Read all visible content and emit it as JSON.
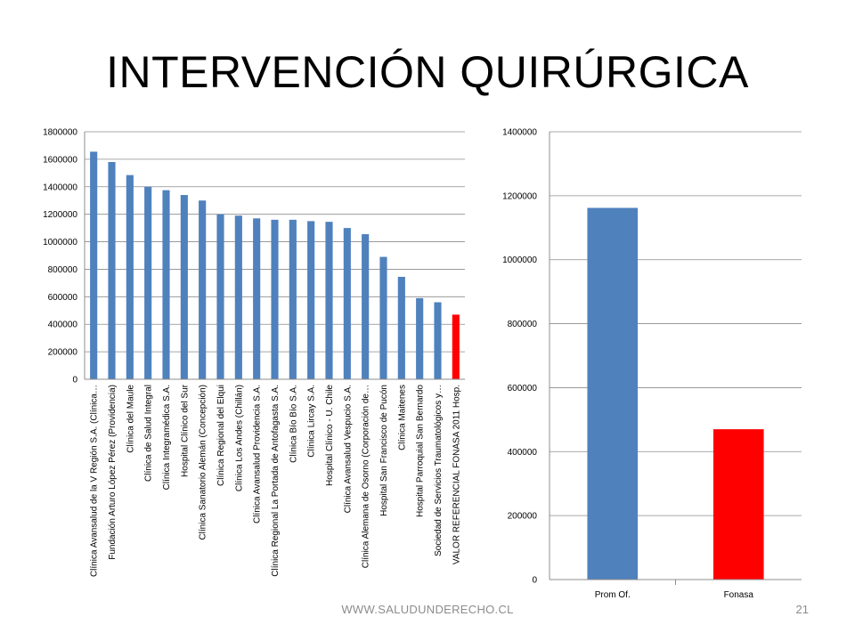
{
  "slide": {
    "title": "INTERVENCIÓN QUIRÚRGICA",
    "footer_url": "WWW.SALUDUNDERECHO.CL",
    "page_number": "21"
  },
  "colors": {
    "blue": "#4f81bd",
    "red": "#ff0000",
    "grid": "#8c8c8c",
    "axis": "#8c8c8c"
  },
  "chart_data": [
    {
      "type": "bar",
      "title": "",
      "xlabel": "",
      "ylabel": "",
      "ylim": [
        0,
        1800000
      ],
      "yticks": [
        0,
        200000,
        400000,
        600000,
        800000,
        1000000,
        1200000,
        1400000,
        1600000,
        1800000
      ],
      "grid": true,
      "legend": "none",
      "categories": [
        "Clínica Avansalud de la V Región S.A. (Clínica…",
        "Fundación Arturo López Pérez (Providencia)",
        "Clínica del Maule",
        "Clínica de Salud Integral",
        "Clínica Integramédica S.A.",
        "Hospital Clínico del Sur",
        "Clínica Sanatorio Alemán (Concepción)",
        "Clínica Regional del Elqui",
        "Clínica Los Andes (Chillán)",
        "Clínica Avansalud Providencia S.A.",
        "Clínica Regional La Portada de Antofagasta S.A.",
        "Clínica Bío Bío S.A.",
        "Clínica Lircay S.A.",
        "Hospital Clínico - U. Chile",
        "Clínica Avansalud Vespucio S.A.",
        "Clínica Alemana de Osorno (Corporación de…",
        "Hospital San Francisco de Pucón",
        "Clínica Maitenes",
        "Hospital Parroquial San Bernardo",
        "Sociedad de Servicios Traumatológicos y…",
        "VALOR REFERENCIAL FONASA 2011 Hosp."
      ],
      "values": [
        1655000,
        1580000,
        1485000,
        1400000,
        1375000,
        1340000,
        1300000,
        1200000,
        1190000,
        1170000,
        1160000,
        1160000,
        1150000,
        1145000,
        1100000,
        1055000,
        890000,
        745000,
        590000,
        560000,
        470000
      ],
      "bar_colors": [
        "blue",
        "blue",
        "blue",
        "blue",
        "blue",
        "blue",
        "blue",
        "blue",
        "blue",
        "blue",
        "blue",
        "blue",
        "blue",
        "blue",
        "blue",
        "blue",
        "blue",
        "blue",
        "blue",
        "blue",
        "red"
      ]
    },
    {
      "type": "bar",
      "title": "",
      "xlabel": "",
      "ylabel": "",
      "ylim": [
        0,
        1400000
      ],
      "yticks": [
        0,
        200000,
        400000,
        600000,
        800000,
        1000000,
        1200000,
        1400000
      ],
      "grid": true,
      "legend": "none",
      "categories": [
        "Prom Of.",
        "Fonasa"
      ],
      "values": [
        1162000,
        470000
      ],
      "bar_colors": [
        "blue",
        "red"
      ]
    }
  ]
}
